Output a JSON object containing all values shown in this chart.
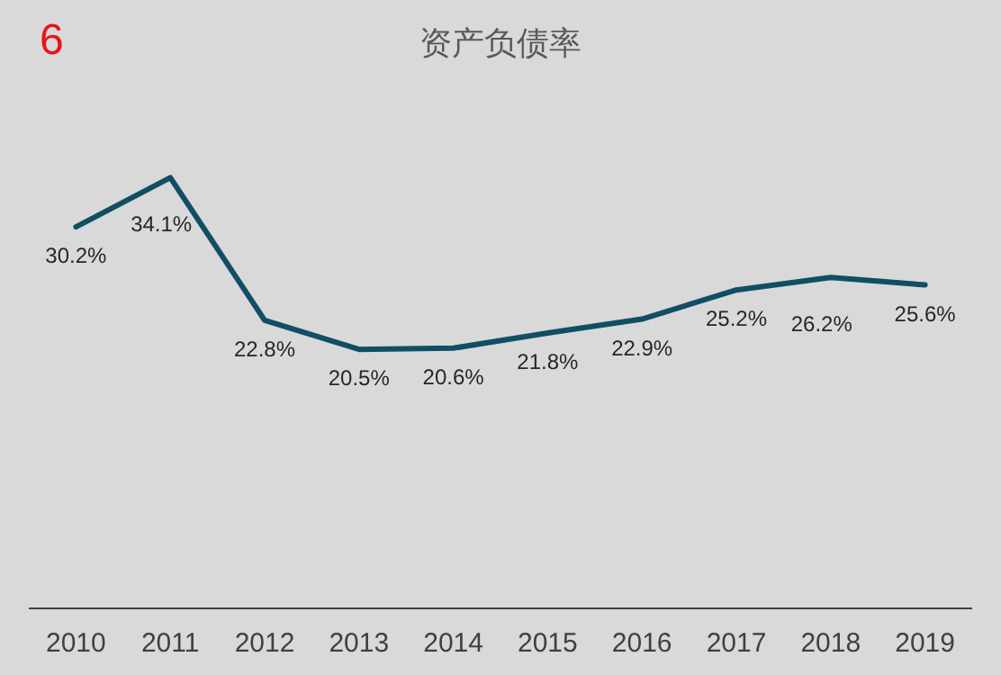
{
  "chart_data": {
    "type": "line",
    "title": "资产负债率",
    "annotations": [
      "6"
    ],
    "categories": [
      "2010",
      "2011",
      "2012",
      "2013",
      "2014",
      "2015",
      "2016",
      "2017",
      "2018",
      "2019"
    ],
    "series": [
      {
        "color": "#114e66",
        "values": [
          30.2,
          34.1,
          22.8,
          20.5,
          20.6,
          21.8,
          22.9,
          25.2,
          26.2,
          25.6
        ],
        "value_labels": [
          "30.2%",
          "34.1%",
          "22.8%",
          "20.5%",
          "20.6%",
          "21.8%",
          "22.9%",
          "25.2%",
          "26.2%",
          "25.6%"
        ]
      }
    ]
  }
}
